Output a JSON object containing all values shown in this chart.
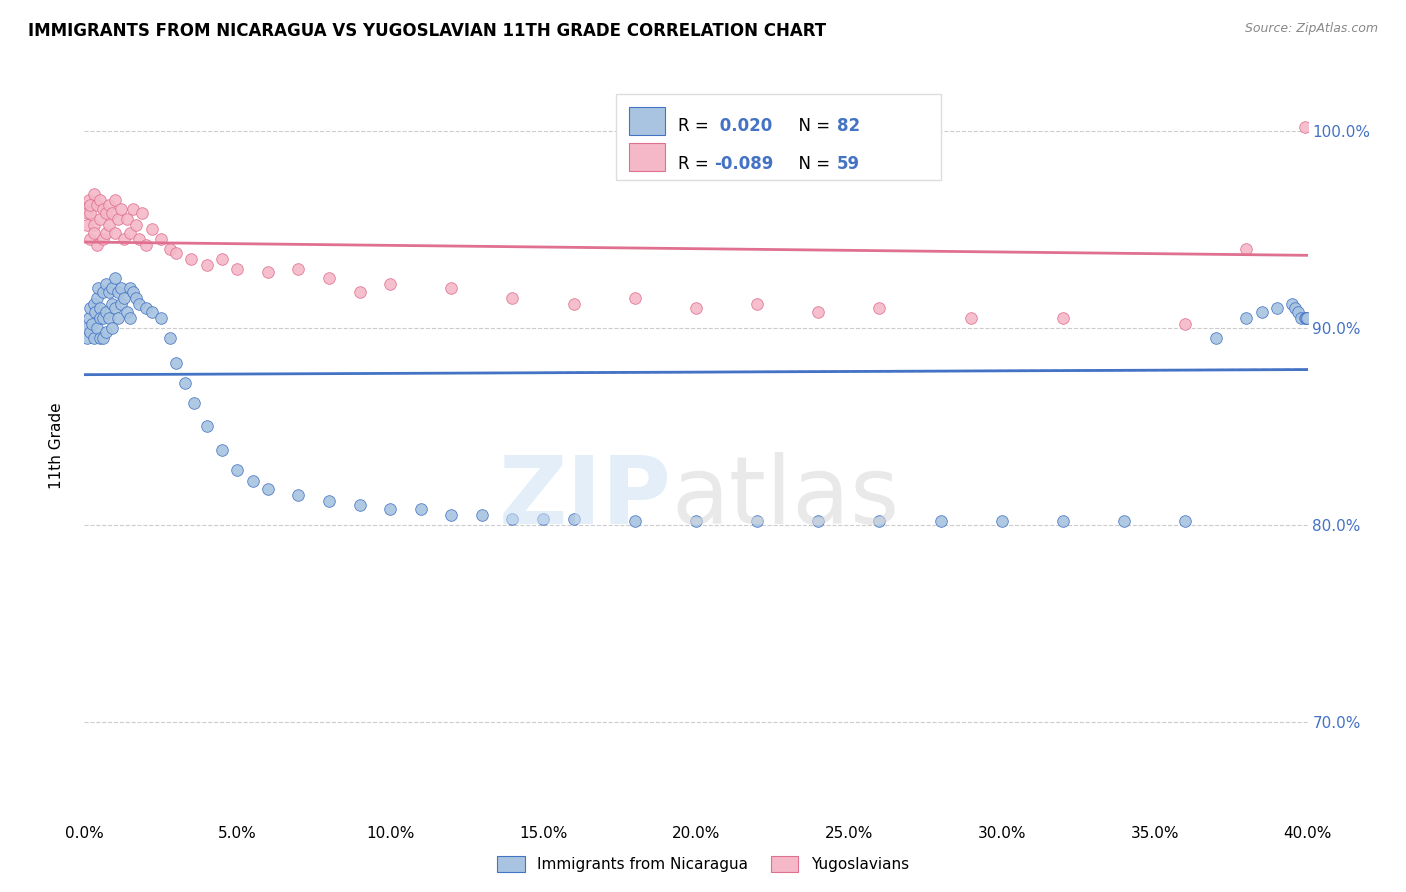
{
  "title": "IMMIGRANTS FROM NICARAGUA VS YUGOSLAVIAN 11TH GRADE CORRELATION CHART",
  "source": "Source: ZipAtlas.com",
  "ylabel": "11th Grade",
  "color_nicaragua": "#a8c4e0",
  "color_yugoslavian": "#f4b8c8",
  "line_color_nicaragua": "#4472c4",
  "line_color_yugoslavian": "#e07090",
  "r_nicaragua": 0.02,
  "n_nicaragua": 82,
  "r_yugoslavian": -0.089,
  "n_yugoslavian": 59,
  "nicaragua_x": [
    0.0005,
    0.001,
    0.0015,
    0.002,
    0.002,
    0.0025,
    0.003,
    0.003,
    0.0035,
    0.004,
    0.004,
    0.0045,
    0.005,
    0.005,
    0.005,
    0.006,
    0.006,
    0.006,
    0.007,
    0.007,
    0.007,
    0.008,
    0.008,
    0.009,
    0.009,
    0.009,
    0.01,
    0.01,
    0.011,
    0.011,
    0.012,
    0.012,
    0.013,
    0.014,
    0.015,
    0.015,
    0.016,
    0.017,
    0.018,
    0.02,
    0.022,
    0.025,
    0.028,
    0.03,
    0.033,
    0.036,
    0.04,
    0.045,
    0.05,
    0.055,
    0.06,
    0.07,
    0.08,
    0.09,
    0.1,
    0.11,
    0.12,
    0.13,
    0.14,
    0.15,
    0.16,
    0.18,
    0.2,
    0.22,
    0.24,
    0.26,
    0.28,
    0.3,
    0.32,
    0.34,
    0.36,
    0.37,
    0.38,
    0.385,
    0.39,
    0.395,
    0.396,
    0.397,
    0.398,
    0.399,
    0.3995,
    0.3999
  ],
  "nicaragua_y": [
    0.9,
    0.895,
    0.905,
    0.898,
    0.91,
    0.902,
    0.912,
    0.895,
    0.908,
    0.915,
    0.9,
    0.92,
    0.91,
    0.895,
    0.905,
    0.918,
    0.905,
    0.895,
    0.922,
    0.908,
    0.898,
    0.918,
    0.905,
    0.92,
    0.912,
    0.9,
    0.925,
    0.91,
    0.918,
    0.905,
    0.92,
    0.912,
    0.915,
    0.908,
    0.92,
    0.905,
    0.918,
    0.915,
    0.912,
    0.91,
    0.908,
    0.905,
    0.895,
    0.882,
    0.872,
    0.862,
    0.85,
    0.838,
    0.828,
    0.822,
    0.818,
    0.815,
    0.812,
    0.81,
    0.808,
    0.808,
    0.805,
    0.805,
    0.803,
    0.803,
    0.803,
    0.802,
    0.802,
    0.802,
    0.802,
    0.802,
    0.802,
    0.802,
    0.802,
    0.802,
    0.802,
    0.895,
    0.905,
    0.908,
    0.91,
    0.912,
    0.91,
    0.908,
    0.905,
    0.905,
    0.905,
    0.905
  ],
  "yugoslavian_x": [
    0.0005,
    0.001,
    0.001,
    0.0015,
    0.002,
    0.002,
    0.002,
    0.003,
    0.003,
    0.003,
    0.004,
    0.004,
    0.005,
    0.005,
    0.006,
    0.006,
    0.007,
    0.007,
    0.008,
    0.008,
    0.009,
    0.01,
    0.01,
    0.011,
    0.012,
    0.013,
    0.014,
    0.015,
    0.016,
    0.017,
    0.018,
    0.019,
    0.02,
    0.022,
    0.025,
    0.028,
    0.03,
    0.035,
    0.04,
    0.045,
    0.05,
    0.06,
    0.07,
    0.08,
    0.09,
    0.1,
    0.12,
    0.14,
    0.16,
    0.18,
    0.2,
    0.22,
    0.24,
    0.26,
    0.29,
    0.32,
    0.36,
    0.38,
    0.399
  ],
  "yugoslavian_y": [
    0.96,
    0.958,
    0.952,
    0.965,
    0.958,
    0.962,
    0.945,
    0.968,
    0.952,
    0.948,
    0.962,
    0.942,
    0.965,
    0.955,
    0.96,
    0.945,
    0.958,
    0.948,
    0.962,
    0.952,
    0.958,
    0.965,
    0.948,
    0.955,
    0.96,
    0.945,
    0.955,
    0.948,
    0.96,
    0.952,
    0.945,
    0.958,
    0.942,
    0.95,
    0.945,
    0.94,
    0.938,
    0.935,
    0.932,
    0.935,
    0.93,
    0.928,
    0.93,
    0.925,
    0.918,
    0.922,
    0.92,
    0.915,
    0.912,
    0.915,
    0.91,
    0.912,
    0.908,
    0.91,
    0.905,
    0.905,
    0.902,
    0.94,
    1.002
  ],
  "xlim": [
    0.0,
    0.4
  ],
  "ylim": [
    0.65,
    1.03
  ],
  "y_ticks": [
    0.7,
    0.8,
    0.9,
    1.0
  ],
  "x_ticks": [
    0.0,
    0.05,
    0.1,
    0.15,
    0.2,
    0.25,
    0.3,
    0.35,
    0.4
  ]
}
